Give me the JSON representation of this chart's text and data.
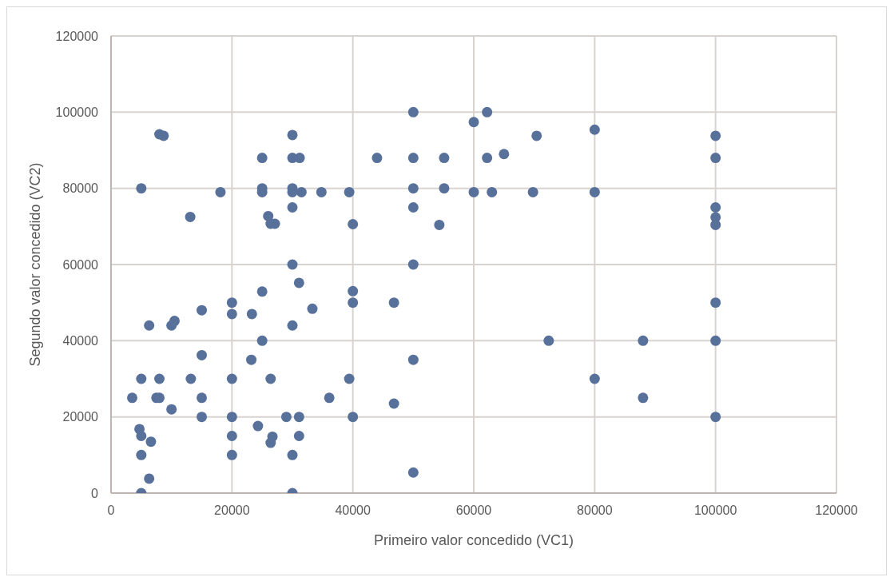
{
  "chart_data": {
    "type": "scatter",
    "xlabel": "Primeiro valor concedido (VC1)",
    "ylabel": "Segundo valor concedido (VC2)",
    "xlim": [
      0,
      120000
    ],
    "xticks": [
      0,
      20000,
      40000,
      60000,
      80000,
      100000,
      120000
    ],
    "ylim": [
      0,
      120000
    ],
    "yticks": [
      0,
      20000,
      40000,
      60000,
      80000,
      100000,
      120000
    ],
    "grid": true,
    "marker": "circle",
    "legend": false,
    "series": [
      {
        "color": "#58719b",
        "x": [
          3500,
          4700,
          5000,
          6600,
          5000,
          6300,
          5000,
          5000,
          8000,
          7500,
          8000,
          10000,
          13200,
          15000,
          15000,
          15000,
          15000,
          6300,
          10000,
          10500,
          20000,
          20000,
          20000,
          20000,
          20000,
          20000,
          23300,
          25000,
          25000,
          23200,
          26400,
          24300,
          26700,
          26400,
          29000,
          31100,
          31100,
          30000,
          30000,
          30000,
          30000,
          31100,
          33300,
          36100,
          39400,
          40000,
          40000,
          40000,
          8000,
          8700,
          5000,
          13100,
          18100,
          25000,
          25000,
          25000,
          26000,
          26400,
          27100,
          30000,
          30000,
          31200,
          30000,
          30000,
          31500,
          30000,
          34800,
          39400,
          40000,
          50000,
          62200,
          60000,
          70400,
          80000,
          100000,
          44000,
          50000,
          55100,
          62200,
          65000,
          100000,
          50000,
          55100,
          60000,
          63000,
          69800,
          80000,
          50000,
          54300,
          100000,
          100000,
          100000,
          50000,
          46800,
          50000,
          46800,
          50000,
          72400,
          80000,
          88000,
          88000,
          100000,
          100000,
          100000
        ],
        "values": [
          25000,
          16800,
          15000,
          13500,
          10000,
          3800,
          0,
          30000,
          30000,
          25000,
          25000,
          22000,
          30000,
          25000,
          20000,
          36200,
          48000,
          44000,
          44000,
          45200,
          30000,
          20000,
          15000,
          10000,
          50000,
          47000,
          47000,
          52900,
          40000,
          35000,
          30000,
          17600,
          14800,
          13200,
          20000,
          20000,
          15000,
          10000,
          0,
          44000,
          60000,
          55200,
          48400,
          25000,
          30000,
          53000,
          50000,
          20000,
          94200,
          93800,
          80000,
          72500,
          79000,
          88000,
          80000,
          79000,
          72700,
          70700,
          70700,
          94000,
          88000,
          88000,
          80000,
          79000,
          79000,
          75000,
          79000,
          79000,
          70600,
          100000,
          100000,
          97400,
          93800,
          95400,
          93800,
          88000,
          88000,
          88000,
          88000,
          89000,
          88000,
          80000,
          80000,
          79000,
          79000,
          79000,
          79000,
          75000,
          70400,
          75000,
          72400,
          70400,
          60000,
          50000,
          35000,
          23500,
          5400,
          40000,
          30000,
          40000,
          25000,
          50000,
          40000,
          20000
        ]
      }
    ]
  }
}
